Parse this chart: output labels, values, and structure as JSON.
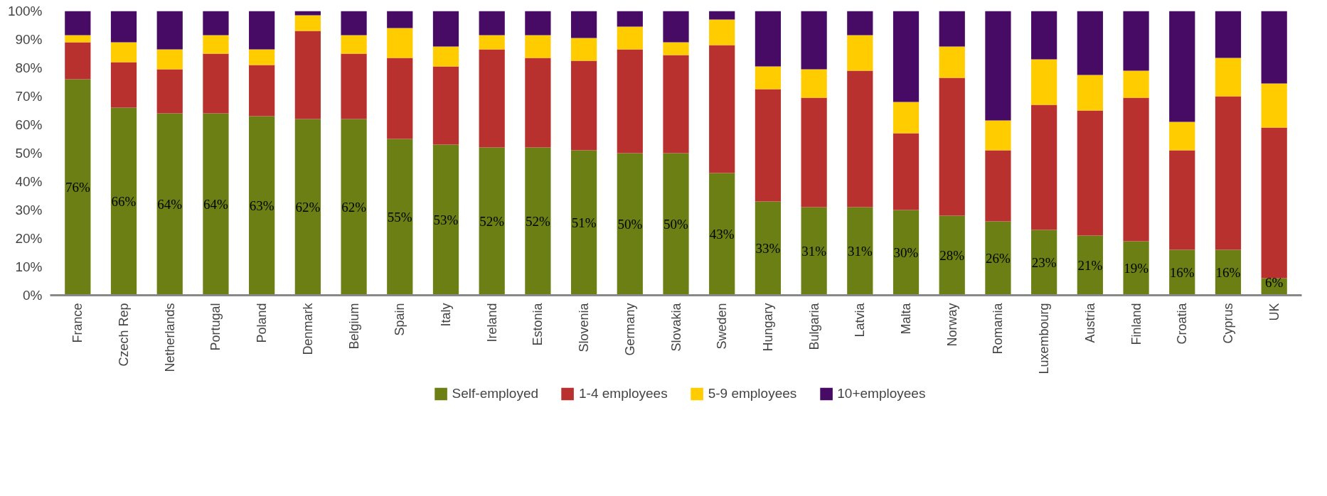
{
  "chart_data": {
    "type": "bar",
    "stacked": true,
    "categories": [
      "France",
      "Czech Rep",
      "Netherlands",
      "Portugal",
      "Poland",
      "Denmark",
      "Belgium",
      "Spain",
      "Italy",
      "Ireland",
      "Estonia",
      "Slovenia",
      "Germany",
      "Slovakia",
      "Sweden",
      "Hungary",
      "Bulgaria",
      "Latvia",
      "Malta",
      "Norway",
      "Romania",
      "Luxembourg",
      "Austria",
      "Finland",
      "Croatia",
      "Cyprus",
      "UK"
    ],
    "series": [
      {
        "name": "Self-employed",
        "color": "#6b7f14",
        "values": [
          76,
          66,
          64,
          64,
          63,
          62,
          62,
          55,
          53,
          52,
          52,
          51,
          50,
          50,
          43,
          33,
          31,
          31,
          30,
          28,
          26,
          23,
          21,
          19,
          16,
          16,
          6
        ],
        "value_labels": [
          "76%",
          "66%",
          "64%",
          "64%",
          "63%",
          "62%",
          "62%",
          "55%",
          "53%",
          "52%",
          "52%",
          "51%",
          "50%",
          "50%",
          "43%",
          "33%",
          "31%",
          "31%",
          "30%",
          "28%",
          "26%",
          "23%",
          "21%",
          "19%",
          "16%",
          "16%",
          "6%"
        ]
      },
      {
        "name": "1-4 employees",
        "color": "#b8312e",
        "values": [
          13,
          16,
          15.5,
          21,
          18,
          31,
          23,
          28.5,
          27.5,
          34.5,
          31.5,
          31.5,
          36.5,
          34.5,
          45,
          39.5,
          38.5,
          48,
          27,
          48.5,
          25,
          44,
          44,
          50.5,
          35,
          54,
          53
        ]
      },
      {
        "name": "5-9 employees",
        "color": "#ffcc00",
        "values": [
          2.5,
          7,
          7,
          6.5,
          5.5,
          5.5,
          6.5,
          10.5,
          7,
          5,
          8,
          8,
          8,
          4.5,
          9,
          8,
          10,
          12.5,
          11,
          11,
          10.5,
          16,
          12.5,
          9.5,
          10,
          13.5,
          15.5
        ]
      },
      {
        "name": "10+employees",
        "color": "#470a65",
        "values": [
          8.5,
          11,
          13.5,
          8.5,
          13.5,
          1.5,
          8.5,
          6,
          12.5,
          8.5,
          8.5,
          9.5,
          5.5,
          11,
          3,
          19.5,
          20.5,
          8.5,
          32,
          12.5,
          38.5,
          17,
          22.5,
          21,
          39,
          16.5,
          25.5
        ]
      }
    ],
    "ylim": [
      0,
      100
    ],
    "yticks": [
      {
        "value": 0,
        "label": "0%"
      },
      {
        "value": 10,
        "label": "10%"
      },
      {
        "value": 20,
        "label": "20%"
      },
      {
        "value": 30,
        "label": "30%"
      },
      {
        "value": 40,
        "label": "40%"
      },
      {
        "value": 50,
        "label": "50%"
      },
      {
        "value": 60,
        "label": "60%"
      },
      {
        "value": 70,
        "label": "70%"
      },
      {
        "value": 80,
        "label": "80%"
      },
      {
        "value": 90,
        "label": "90%"
      },
      {
        "value": 100,
        "label": "100%"
      }
    ],
    "grid": false,
    "legend": "bottom"
  }
}
